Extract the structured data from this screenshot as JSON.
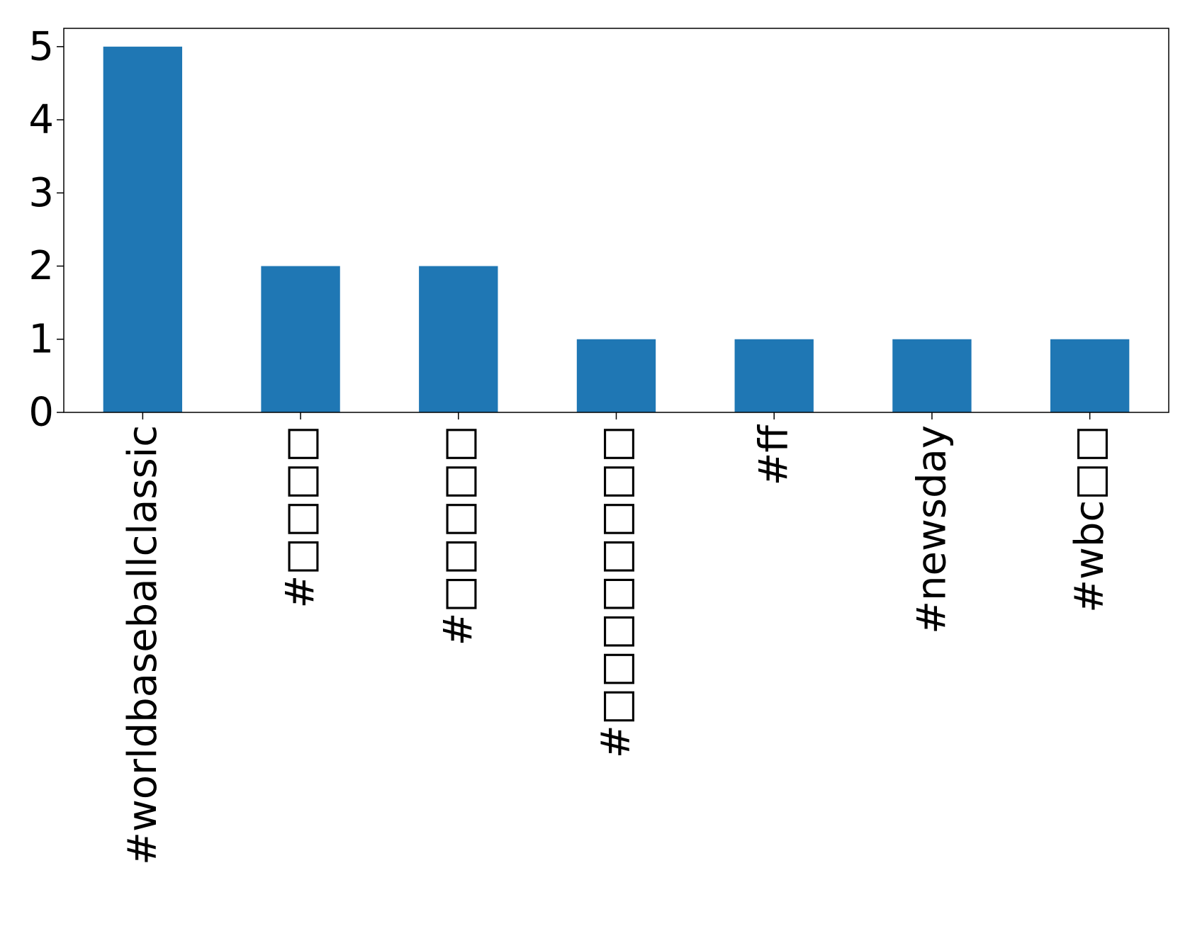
{
  "chart_data": {
    "type": "bar",
    "categories": [
      "#worldbaseballclassic",
      "#□□□□",
      "#□□□□□",
      "#□□□□□□□□",
      "#ff",
      "#newsday",
      "#wbc□□"
    ],
    "values": [
      5,
      2,
      2,
      1,
      1,
      1,
      1
    ],
    "ylim": [
      0,
      5.25
    ],
    "yticks": [
      0,
      1,
      2,
      3,
      4,
      5
    ],
    "title": "",
    "xlabel": "",
    "ylabel": "",
    "grid": false,
    "bar_color": "#1f77b4"
  }
}
